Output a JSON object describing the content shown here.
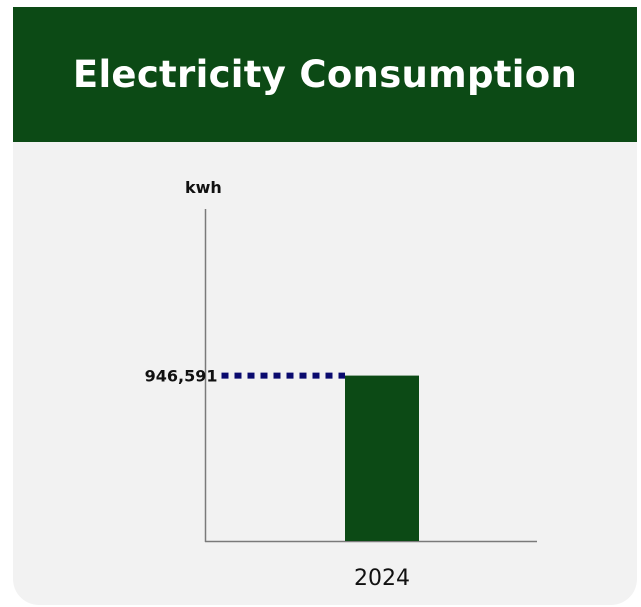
{
  "header": {
    "title": "Electricity Consumption"
  },
  "chart_data": {
    "type": "bar",
    "title": "Electricity Consumption",
    "ylabel": "kwh",
    "xlabel": "",
    "categories": [
      "2024"
    ],
    "values": [
      946591
    ],
    "value_labels": [
      "946,591"
    ],
    "ylim": [
      0,
      1900000
    ],
    "grid": false,
    "legend": "none"
  },
  "colors": {
    "header_bg": "#0c4a15",
    "bar": "#0c4a15",
    "reference_line": "#0a0a6e",
    "axis": "#7a7a7a",
    "card_bg": "#f2f2f2"
  }
}
